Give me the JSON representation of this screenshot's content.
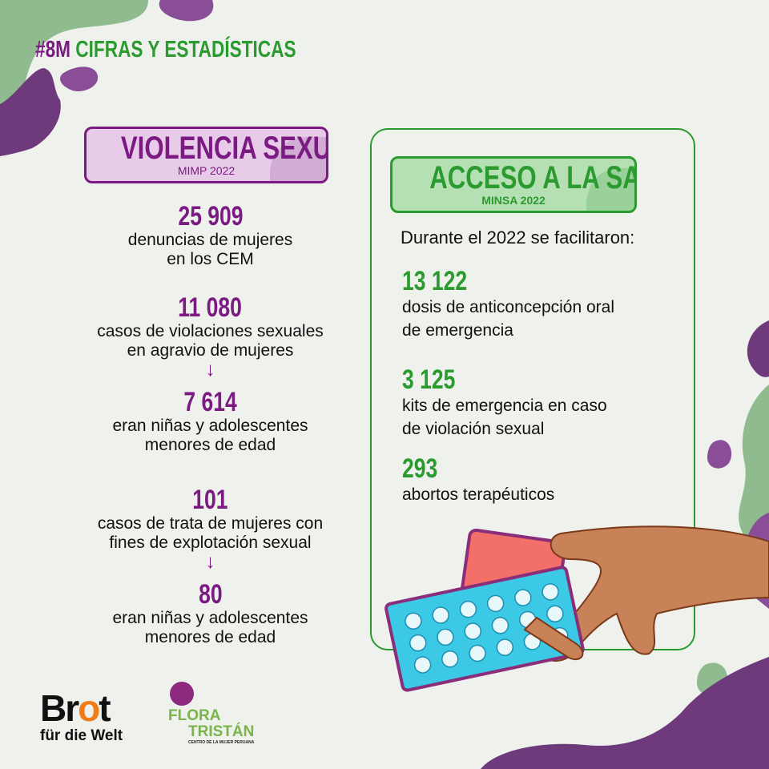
{
  "header": {
    "hashtag": "#8M",
    "title": "CIFRAS Y ESTADÍSTICAS"
  },
  "colors": {
    "purple": "#7b1a82",
    "green": "#2b9a2f",
    "purple_box": "#e8cbe9",
    "green_box": "#b5e0b4"
  },
  "violencia": {
    "title": "VIOLENCIA SEXUAL",
    "source": "MIMP 2022",
    "stats": [
      {
        "value": "25 909",
        "lines": [
          "denuncias de mujeres",
          "en los CEM"
        ]
      },
      {
        "value": "11 080",
        "lines": [
          "casos de violaciones sexuales",
          "en agravio de mujeres"
        ]
      },
      {
        "value": "7 614",
        "lines": [
          "eran niñas y adolescentes",
          "menores de edad"
        ]
      },
      {
        "value": "101",
        "lines": [
          "casos de trata de mujeres con",
          "fines de explotación sexual"
        ]
      },
      {
        "value": "80",
        "lines": [
          "eran niñas y adolescentes",
          "menores de edad"
        ]
      }
    ],
    "arrow": "↓"
  },
  "salud": {
    "title": "ACCESO A LA SALUD",
    "source": "MINSA 2022",
    "intro": "Durante el 2022 se facilitaron:",
    "stats": [
      {
        "value": "13 122",
        "lines": [
          "dosis de anticoncepción oral",
          "de emergencia"
        ]
      },
      {
        "value": "3 125",
        "lines": [
          "kits de emergencia en caso",
          "de violación sexual"
        ]
      },
      {
        "value": "293",
        "lines": [
          "abortos terapéuticos"
        ]
      }
    ]
  },
  "logos": {
    "brot": {
      "line1_a": "Br",
      "line1_b": "o",
      "line1_c": "t",
      "line2": "für die Welt"
    },
    "flora": {
      "line1": "FLORA",
      "line2": "TRISTÁN",
      "line3": "CENTRO DE LA MUJER PERUANA"
    }
  }
}
